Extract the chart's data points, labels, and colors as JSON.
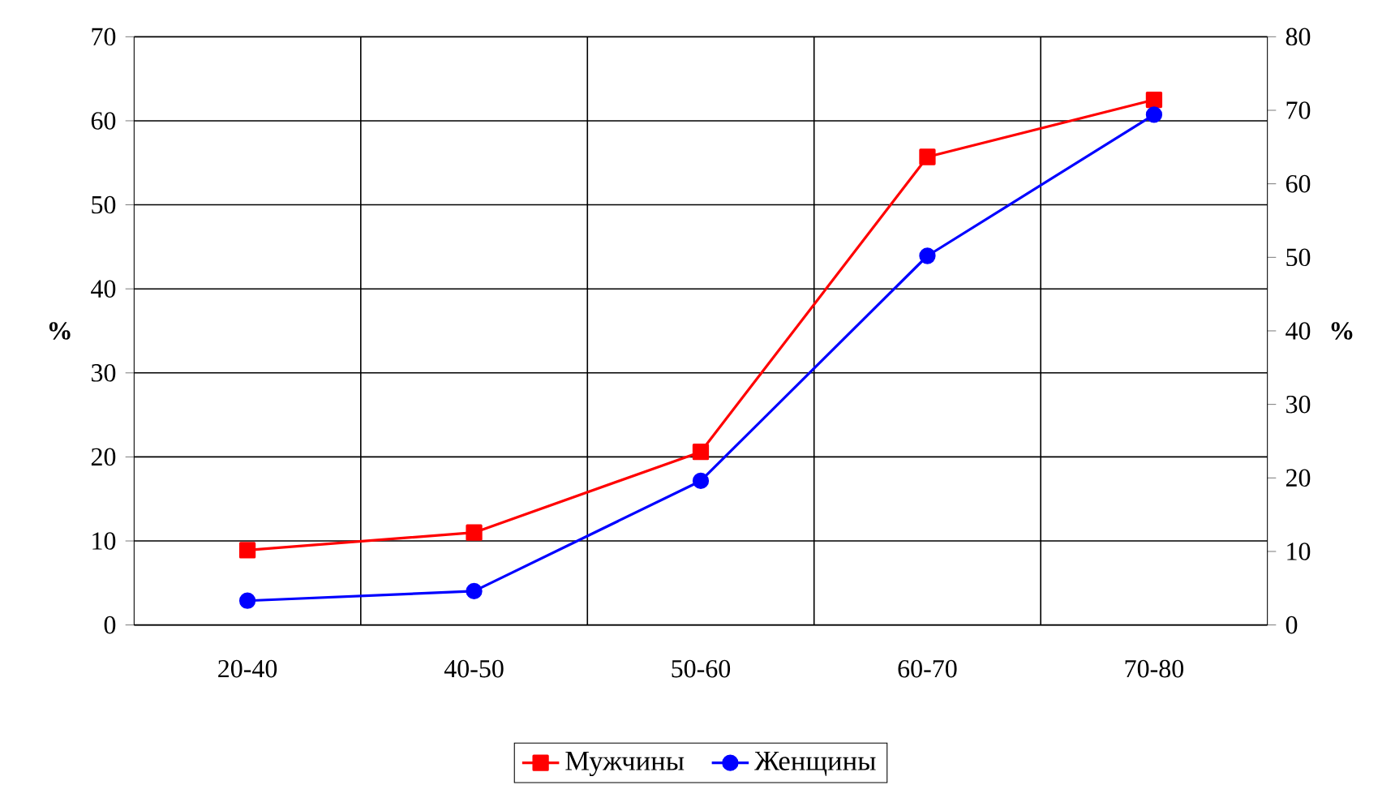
{
  "chart_data": {
    "type": "line",
    "ylabel": "%",
    "y2label": "%",
    "categories": [
      "20-40",
      "40-50",
      "50-60",
      "60-70",
      "70-80"
    ],
    "series": [
      {
        "name": "Мужчины",
        "color": "#ff0000",
        "marker": "square",
        "values": [
          8.9,
          11.0,
          20.6,
          55.7,
          62.5
        ]
      },
      {
        "name": "Женщины",
        "color": "#0000ff",
        "marker": "circle",
        "axis": "y2",
        "values": [
          3.3,
          4.6,
          19.6,
          50.2,
          69.4
        ]
      }
    ],
    "ylim": [
      0,
      70
    ],
    "yticks": [
      0,
      10,
      20,
      30,
      40,
      50,
      60,
      70
    ],
    "y2lim": [
      0,
      80
    ],
    "y2ticks": [
      0,
      10,
      20,
      30,
      40,
      50,
      60,
      70,
      80
    ],
    "grid": true,
    "legend": "bottom"
  }
}
